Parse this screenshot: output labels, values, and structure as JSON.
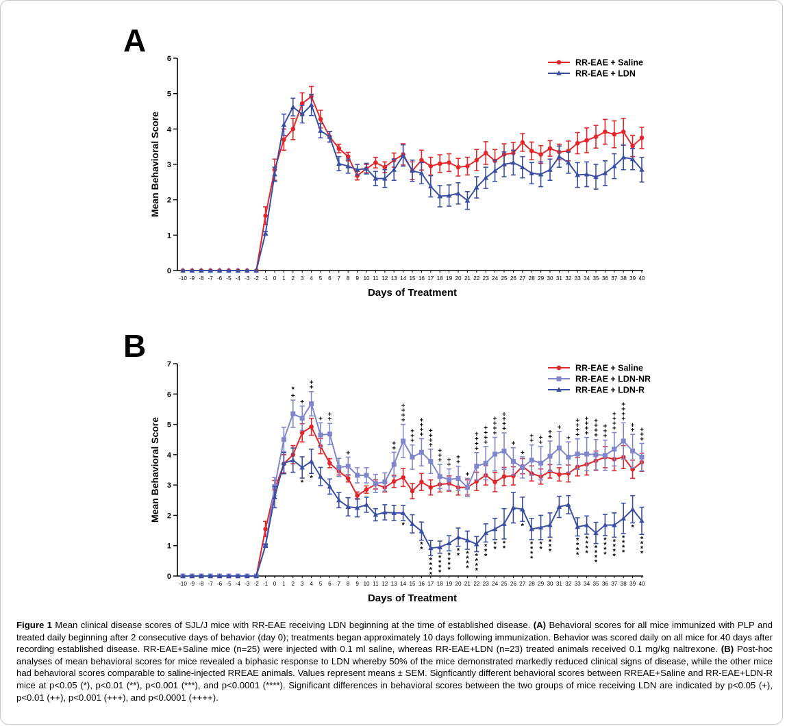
{
  "caption": {
    "label": "Figure 1",
    "intro": "Mean clinical disease scores of SJL/J mice with RR-EAE receiving LDN beginning at the time of established disease.",
    "a_label": "(A)",
    "a_text": "Behavioral scores for all mice immunized with PLP and treated daily beginning after 2 consecutive days of behavior (day 0); treatments began approximately 10 days following immunization. Behavior was scored daily on all mice for 40 days after recording established disease. RR-EAE+Saline mice (n=25) were injected with 0.1 ml saline, whereas RR-EAE+LDN (n=23) treated animals received 0.1 mg/kg naltrexone.",
    "b_label": "(B)",
    "b_text": "Post-hoc analyses of mean behavioral scores for mice revealed a biphasic response to LDN whereby 50% of the mice demonstrated markedly reduced clinical signs of disease, while the other mice had behavioral scores comparable to saline-injected RREAE animals. Values represent means ± SEM. Signficantly different behavioral scores between RREAE+Saline and RR-EAE+LDN-R mice at p<0.05 (*), p<0.01 (**), p<0.001 (***), and p<0.0001 (****). Significant differences in behavioral scores between the two groups of mice receiving LDN are indicated by p<0.05 (+), p<0.01 (++), p<0.001 (+++), and p<0.0001 (++++)."
  },
  "colors": {
    "saline": "#e3262a",
    "ldn": "#3a4fa3",
    "ldn_nr": "#7f86cc"
  },
  "chart_data": [
    {
      "type": "line",
      "panel": "A",
      "xlabel": "Days of Treatment",
      "ylabel": "Mean Behavioral Score",
      "ylim": [
        0,
        6
      ],
      "yticks": [
        "0",
        "1",
        "2",
        "3",
        "4",
        "5",
        "6"
      ],
      "x": [
        "-10",
        "-9",
        "-8",
        "-7",
        "-6",
        "-5",
        "-4",
        "-3",
        "-2",
        "-1",
        "0",
        "1",
        "2",
        "3",
        "4",
        "5",
        "6",
        "7",
        "8",
        "9",
        "10",
        "11",
        "12",
        "13",
        "14",
        "15",
        "16",
        "17",
        "18",
        "19",
        "20",
        "21",
        "22",
        "23",
        "24",
        "25",
        "26",
        "27",
        "28",
        "29",
        "30",
        "31",
        "32",
        "33",
        "34",
        "35",
        "36",
        "37",
        "38",
        "39",
        "40"
      ],
      "legend_position": "top-right",
      "series": [
        {
          "name": "RR-EAE + Saline",
          "marker": "circle",
          "color_key": "saline",
          "values": [
            0,
            0,
            0,
            0,
            0,
            0,
            0,
            0,
            0,
            1.55,
            2.85,
            3.7,
            4.0,
            4.72,
            4.92,
            4.28,
            3.78,
            3.45,
            3.22,
            2.68,
            2.88,
            3.05,
            2.92,
            3.12,
            3.28,
            2.82,
            3.12,
            2.95,
            3.02,
            3.05,
            2.92,
            2.95,
            3.12,
            3.32,
            3.1,
            3.28,
            3.32,
            3.62,
            3.38,
            3.28,
            3.45,
            3.35,
            3.38,
            3.6,
            3.68,
            3.78,
            3.92,
            3.85,
            3.92,
            3.52,
            3.75
          ],
          "sem": [
            0,
            0,
            0,
            0,
            0,
            0,
            0,
            0,
            0,
            0.25,
            0.3,
            0.3,
            0.3,
            0.3,
            0.28,
            0.25,
            0.15,
            0.12,
            0.12,
            0.12,
            0.12,
            0.15,
            0.15,
            0.2,
            0.3,
            0.25,
            0.28,
            0.25,
            0.25,
            0.25,
            0.25,
            0.25,
            0.3,
            0.32,
            0.32,
            0.3,
            0.3,
            0.25,
            0.25,
            0.25,
            0.22,
            0.22,
            0.28,
            0.3,
            0.35,
            0.32,
            0.35,
            0.38,
            0.38,
            0.3,
            0.3
          ]
        },
        {
          "name": "RR-EAE + LDN",
          "marker": "triangle",
          "color_key": "ldn",
          "values": [
            0,
            0,
            0,
            0,
            0,
            0,
            0,
            0,
            0,
            1.05,
            2.72,
            4.12,
            4.62,
            4.42,
            4.68,
            3.95,
            3.78,
            3.02,
            2.95,
            2.85,
            2.88,
            2.6,
            2.6,
            2.85,
            3.25,
            2.82,
            2.75,
            2.38,
            2.1,
            2.12,
            2.18,
            1.98,
            2.35,
            2.62,
            2.82,
            3.0,
            3.05,
            2.92,
            2.75,
            2.72,
            2.85,
            3.22,
            3.05,
            2.7,
            2.72,
            2.65,
            2.75,
            2.95,
            3.2,
            3.15,
            2.85
          ],
          "sem": [
            0,
            0,
            0,
            0,
            0,
            0,
            0,
            0,
            0,
            0.05,
            0.2,
            0.3,
            0.25,
            0.25,
            0.3,
            0.2,
            0.15,
            0.2,
            0.2,
            0.15,
            0.15,
            0.2,
            0.25,
            0.3,
            0.3,
            0.3,
            0.3,
            0.3,
            0.3,
            0.3,
            0.3,
            0.25,
            0.3,
            0.3,
            0.3,
            0.35,
            0.35,
            0.3,
            0.3,
            0.35,
            0.3,
            0.3,
            0.3,
            0.35,
            0.35,
            0.35,
            0.35,
            0.35,
            0.35,
            0.3,
            0.35
          ]
        }
      ]
    },
    {
      "type": "line",
      "panel": "B",
      "xlabel": "Days of Treatment",
      "ylabel": "Mean Behavioral Score",
      "ylim": [
        0,
        7
      ],
      "yticks": [
        "0",
        "1",
        "2",
        "3",
        "4",
        "5",
        "6",
        "7"
      ],
      "x": [
        "-10",
        "-9",
        "-8",
        "-7",
        "-6",
        "-5",
        "-4",
        "-3",
        "-2",
        "-1",
        "0",
        "1",
        "2",
        "3",
        "4",
        "5",
        "6",
        "7",
        "8",
        "9",
        "10",
        "11",
        "12",
        "13",
        "14",
        "15",
        "16",
        "17",
        "18",
        "19",
        "20",
        "21",
        "22",
        "23",
        "24",
        "25",
        "26",
        "27",
        "28",
        "29",
        "30",
        "31",
        "32",
        "33",
        "34",
        "35",
        "36",
        "37",
        "38",
        "39",
        "40"
      ],
      "legend_position": "top-right",
      "series": [
        {
          "name": "RR-EAE + Saline",
          "marker": "circle",
          "color_key": "saline",
          "values": [
            0,
            0,
            0,
            0,
            0,
            0,
            0,
            0,
            0,
            1.55,
            2.85,
            3.7,
            4.0,
            4.72,
            4.92,
            4.28,
            3.72,
            3.45,
            3.22,
            2.65,
            2.85,
            3.02,
            2.92,
            3.12,
            3.25,
            2.8,
            3.1,
            2.92,
            3.02,
            3.05,
            2.92,
            2.92,
            3.12,
            3.32,
            3.1,
            3.28,
            3.3,
            3.62,
            3.38,
            3.28,
            3.45,
            3.35,
            3.38,
            3.6,
            3.68,
            3.8,
            3.92,
            3.85,
            3.92,
            3.52,
            3.75
          ],
          "sem": [
            0,
            0,
            0,
            0,
            0,
            0,
            0,
            0,
            0,
            0.25,
            0.3,
            0.3,
            0.3,
            0.3,
            0.28,
            0.25,
            0.15,
            0.12,
            0.12,
            0.12,
            0.12,
            0.15,
            0.15,
            0.2,
            0.3,
            0.25,
            0.28,
            0.25,
            0.25,
            0.25,
            0.25,
            0.25,
            0.3,
            0.32,
            0.32,
            0.3,
            0.3,
            0.25,
            0.25,
            0.25,
            0.22,
            0.22,
            0.28,
            0.3,
            0.35,
            0.32,
            0.35,
            0.38,
            0.38,
            0.3,
            0.3
          ]
        },
        {
          "name": "RR-EAE + LDN-NR",
          "marker": "square",
          "color_key": "ldn_nr",
          "values": [
            0,
            0,
            0,
            0,
            0,
            0,
            0,
            0,
            0,
            1.0,
            2.95,
            4.5,
            5.35,
            5.2,
            5.68,
            4.65,
            4.68,
            3.58,
            3.62,
            3.32,
            3.32,
            3.05,
            3.1,
            3.68,
            4.45,
            3.92,
            4.08,
            3.78,
            3.28,
            3.18,
            3.22,
            2.92,
            3.62,
            3.72,
            4.02,
            4.12,
            3.78,
            3.58,
            3.82,
            3.72,
            3.95,
            4.22,
            3.92,
            4.02,
            4.02,
            4.0,
            3.98,
            4.18,
            4.45,
            4.12,
            3.92
          ],
          "sem": [
            0,
            0,
            0,
            0,
            0,
            0,
            0,
            0,
            0,
            0.05,
            0.3,
            0.4,
            0.45,
            0.4,
            0.4,
            0.4,
            0.35,
            0.3,
            0.3,
            0.25,
            0.25,
            0.3,
            0.3,
            0.4,
            0.55,
            0.4,
            0.45,
            0.4,
            0.4,
            0.35,
            0.4,
            0.3,
            0.45,
            0.55,
            0.55,
            0.6,
            0.45,
            0.35,
            0.5,
            0.55,
            0.5,
            0.55,
            0.5,
            0.5,
            0.55,
            0.5,
            0.5,
            0.55,
            0.6,
            0.55,
            0.45
          ]
        },
        {
          "name": "RR-EAE + LDN-R",
          "marker": "triangle",
          "color_key": "ldn",
          "values": [
            0,
            0,
            0,
            0,
            0,
            0,
            0,
            0,
            0,
            1.0,
            2.6,
            3.72,
            3.82,
            3.58,
            3.78,
            3.28,
            2.95,
            2.5,
            2.28,
            2.25,
            2.35,
            2.02,
            2.1,
            2.08,
            2.08,
            1.72,
            1.48,
            0.92,
            0.95,
            1.08,
            1.28,
            1.18,
            1.05,
            1.42,
            1.55,
            1.72,
            2.25,
            2.2,
            1.55,
            1.6,
            1.68,
            2.28,
            2.35,
            1.62,
            1.68,
            1.42,
            1.68,
            1.68,
            1.9,
            2.2,
            1.82
          ],
          "sem": [
            0,
            0,
            0,
            0,
            0,
            0,
            0,
            0,
            0,
            0.05,
            0.35,
            0.35,
            0.4,
            0.35,
            0.4,
            0.3,
            0.25,
            0.25,
            0.3,
            0.3,
            0.25,
            0.2,
            0.25,
            0.25,
            0.25,
            0.3,
            0.3,
            0.25,
            0.2,
            0.25,
            0.3,
            0.3,
            0.25,
            0.3,
            0.35,
            0.5,
            0.5,
            0.4,
            0.35,
            0.4,
            0.4,
            0.35,
            0.3,
            0.3,
            0.3,
            0.35,
            0.35,
            0.4,
            0.5,
            0.45,
            0.45
          ]
        }
      ],
      "annotations": {
        "ldn_r_vs_saline": [
          {
            "day": "2",
            "marks": "*",
            "pos": "above"
          },
          {
            "day": "3",
            "marks": "*",
            "pos": "below"
          },
          {
            "day": "4",
            "marks": "*",
            "pos": "below"
          },
          {
            "day": "14",
            "marks": "*",
            "pos": "below"
          },
          {
            "day": "16",
            "marks": "**",
            "pos": "below"
          },
          {
            "day": "17",
            "marks": "****",
            "pos": "below"
          },
          {
            "day": "18",
            "marks": "****",
            "pos": "below"
          },
          {
            "day": "19",
            "marks": "****",
            "pos": "below"
          },
          {
            "day": "20",
            "marks": "**",
            "pos": "below"
          },
          {
            "day": "21",
            "marks": "****",
            "pos": "below"
          },
          {
            "day": "22",
            "marks": "****",
            "pos": "below"
          },
          {
            "day": "23",
            "marks": "***",
            "pos": "below"
          },
          {
            "day": "24",
            "marks": "**",
            "pos": "below"
          },
          {
            "day": "25",
            "marks": "**",
            "pos": "below"
          },
          {
            "day": "27",
            "marks": "*",
            "pos": "below"
          },
          {
            "day": "28",
            "marks": "****",
            "pos": "below"
          },
          {
            "day": "29",
            "marks": "**",
            "pos": "below"
          },
          {
            "day": "30",
            "marks": "***",
            "pos": "below"
          },
          {
            "day": "33",
            "marks": "****",
            "pos": "below"
          },
          {
            "day": "34",
            "marks": "****",
            "pos": "below"
          },
          {
            "day": "35",
            "marks": "****",
            "pos": "below"
          },
          {
            "day": "36",
            "marks": "****",
            "pos": "below"
          },
          {
            "day": "37",
            "marks": "****",
            "pos": "below"
          },
          {
            "day": "38",
            "marks": "****",
            "pos": "below"
          },
          {
            "day": "39",
            "marks": "*",
            "pos": "below"
          },
          {
            "day": "40",
            "marks": "****",
            "pos": "below"
          }
        ],
        "ldn_nr_vs_ldn_r": [
          {
            "day": "2",
            "marks": "+"
          },
          {
            "day": "3",
            "marks": "+"
          },
          {
            "day": "4",
            "marks": "++"
          },
          {
            "day": "5",
            "marks": "+"
          },
          {
            "day": "6",
            "marks": "++"
          },
          {
            "day": "8",
            "marks": "+"
          },
          {
            "day": "13",
            "marks": "++"
          },
          {
            "day": "14",
            "marks": "++++"
          },
          {
            "day": "15",
            "marks": "+++"
          },
          {
            "day": "16",
            "marks": "++++"
          },
          {
            "day": "17",
            "marks": "++++"
          },
          {
            "day": "18",
            "marks": "+++"
          },
          {
            "day": "19",
            "marks": "++"
          },
          {
            "day": "20",
            "marks": "++"
          },
          {
            "day": "21",
            "marks": "+"
          },
          {
            "day": "22",
            "marks": "++++"
          },
          {
            "day": "23",
            "marks": "++++"
          },
          {
            "day": "24",
            "marks": "++++"
          },
          {
            "day": "25",
            "marks": "++++"
          },
          {
            "day": "26",
            "marks": "+"
          },
          {
            "day": "27",
            "marks": "+"
          },
          {
            "day": "28",
            "marks": "++"
          },
          {
            "day": "29",
            "marks": "++"
          },
          {
            "day": "30",
            "marks": "++"
          },
          {
            "day": "31",
            "marks": "+"
          },
          {
            "day": "32",
            "marks": "+"
          },
          {
            "day": "33",
            "marks": "++++"
          },
          {
            "day": "34",
            "marks": "++++"
          },
          {
            "day": "35",
            "marks": "++++"
          },
          {
            "day": "36",
            "marks": "+++"
          },
          {
            "day": "37",
            "marks": "++++"
          },
          {
            "day": "38",
            "marks": "++++"
          },
          {
            "day": "39",
            "marks": "++"
          },
          {
            "day": "40",
            "marks": "+++"
          }
        ]
      }
    }
  ]
}
